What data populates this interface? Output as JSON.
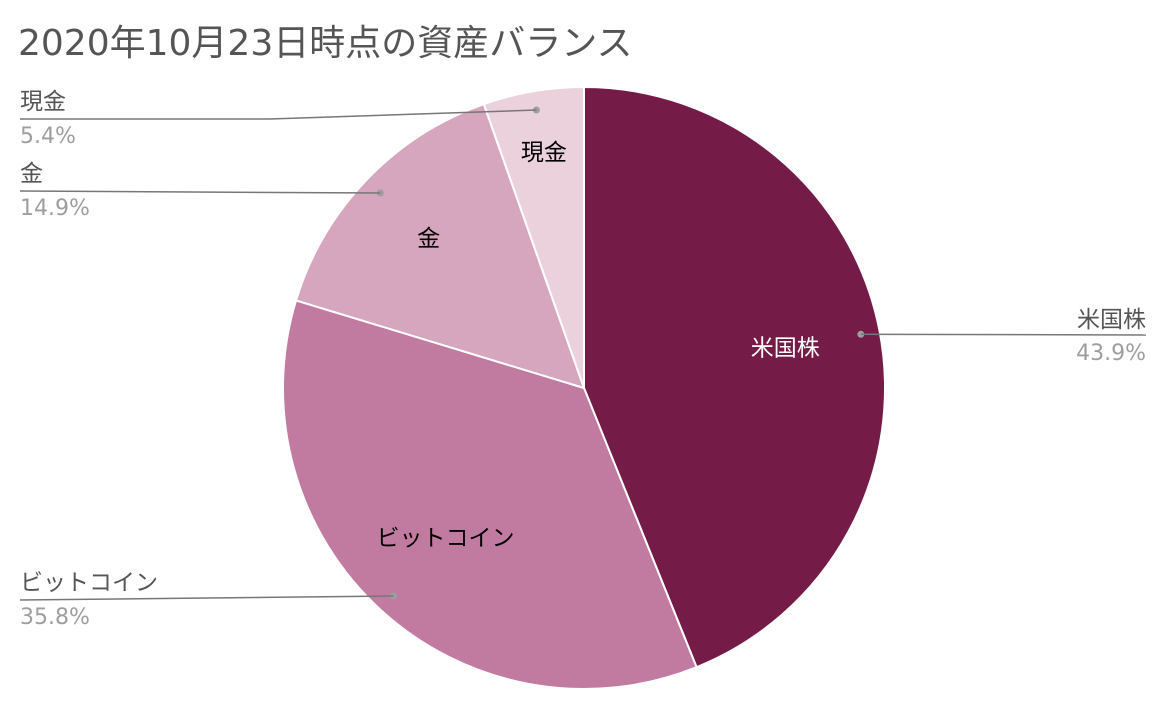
{
  "chart_data": {
    "type": "pie",
    "title": "2020年10月23日時点の資産バランス",
    "slices": [
      {
        "label": "米国株",
        "value": 43.9,
        "percent_text": "43.9%",
        "color": "#741b47",
        "label_color": "#ffffff"
      },
      {
        "label": "ビットコイン",
        "value": 35.8,
        "percent_text": "35.8%",
        "color": "#c27ba0",
        "label_color": "#000000"
      },
      {
        "label": "金",
        "value": 14.9,
        "percent_text": "14.9%",
        "color": "#d5a6bd",
        "label_color": "#000000"
      },
      {
        "label": "現金",
        "value": 5.4,
        "percent_text": "5.4%",
        "color": "#ead1dc",
        "label_color": "#000000"
      }
    ],
    "start_angle_deg": 0,
    "direction": "clockwise",
    "legend": "callouts"
  }
}
